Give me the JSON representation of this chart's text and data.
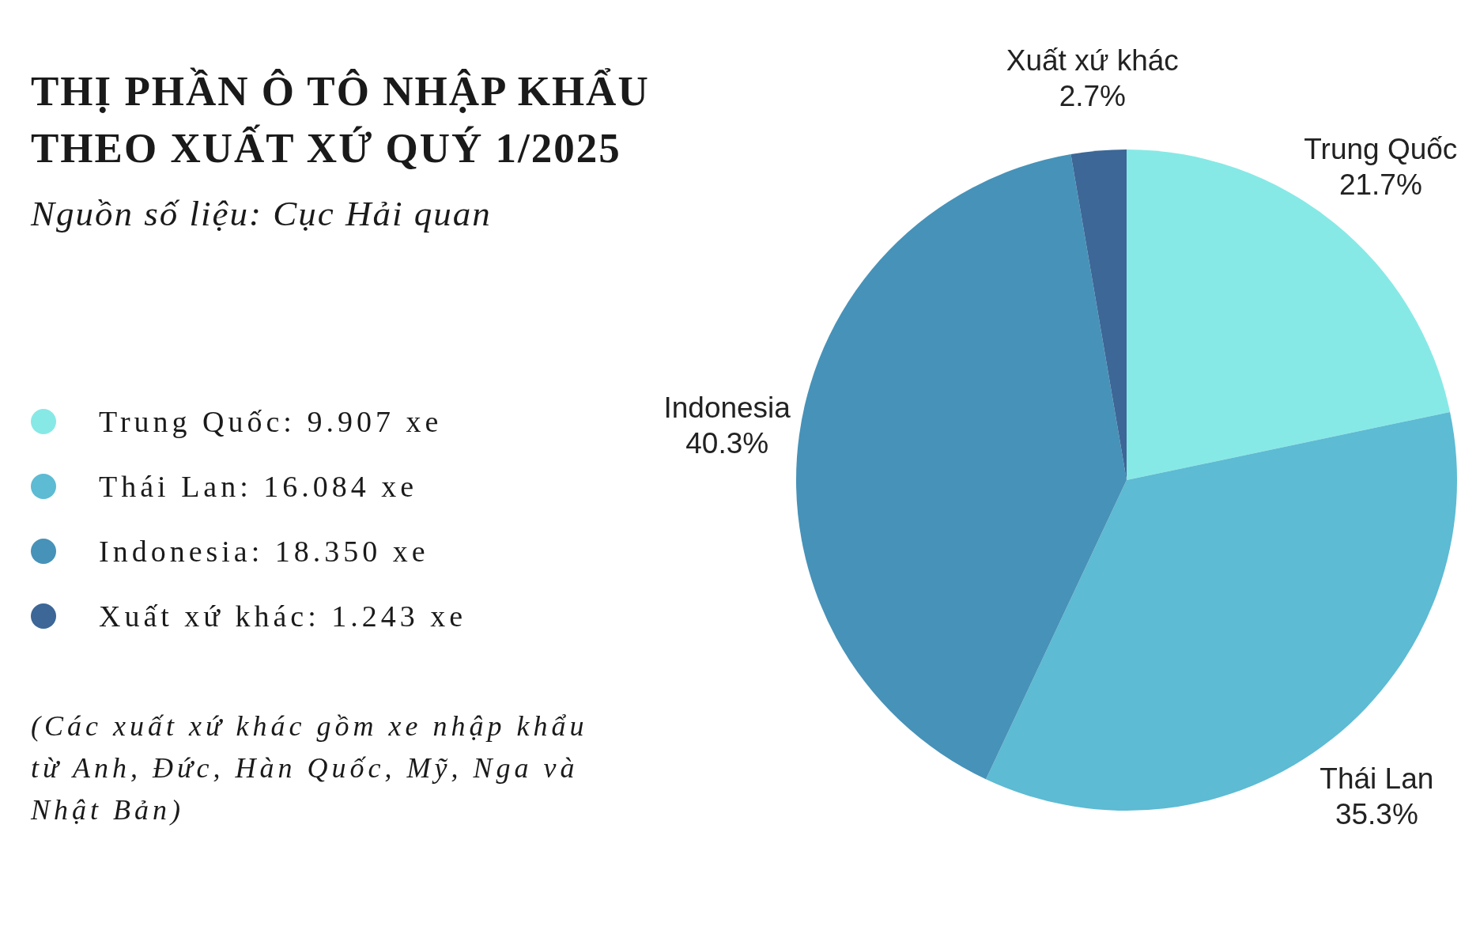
{
  "chart_data": {
    "type": "pie",
    "title": "THỊ PHẦN Ô TÔ NHẬP KHẨU THEO XUẤT XỨ QUÝ 1/2025",
    "subtitle": "Nguồn số liệu: Cục Hải quan",
    "categories": [
      "Trung Quốc",
      "Thái Lan",
      "Indonesia",
      "Xuất xứ khác"
    ],
    "values": [
      21.7,
      35.3,
      40.3,
      2.7
    ],
    "value_labels": [
      "21.7%",
      "35.3%",
      "40.3%",
      "2.7%"
    ],
    "colors": [
      "#87e9e6",
      "#5dbbd3",
      "#4792b8",
      "#3c6797"
    ],
    "annotations": [
      "Trung Quốc: 9.907 xe",
      "Thái Lan: 16.084 xe",
      "Indonesia: 18.350 xe",
      "Xuất xứ khác: 1.243 xe",
      "(Các xuất xứ khác gồm xe nhập khẩu từ Anh, Đức, Hàn Quốc, Mỹ, Nga và Nhật Bản)"
    ]
  }
}
